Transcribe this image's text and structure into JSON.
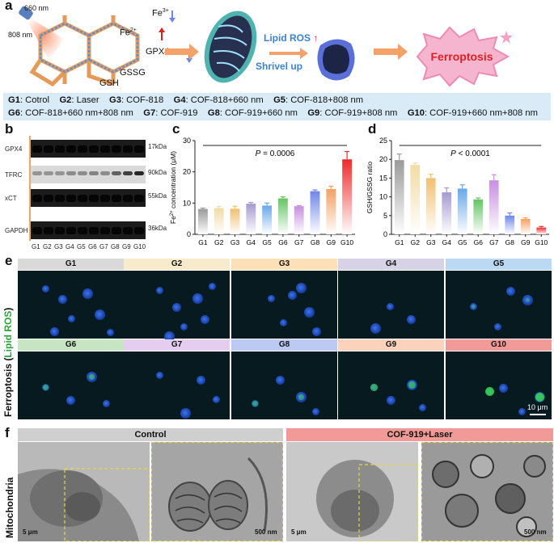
{
  "panels": {
    "a": "a",
    "b": "b",
    "c": "c",
    "d": "d",
    "e": "e",
    "f": "f"
  },
  "schematic": {
    "nm660": "660 nm",
    "nm808": "808 nm",
    "fe3": "Fe",
    "fe3sup": "3+",
    "fe2": "Fe",
    "fe2sup": "2+",
    "gpx4": "GPX4",
    "gssg": "GSSG",
    "gsh": "GSH",
    "lipid_ros": "Lipid ROS",
    "shrivel": "Shrivel up",
    "ferroptosis": "Ferroptosis"
  },
  "legend": {
    "row1": [
      {
        "g": "G1",
        "t": ": Cotrol"
      },
      {
        "g": "G2",
        "t": ": Laser"
      },
      {
        "g": "G3",
        "t": ": COF-818"
      },
      {
        "g": "G4",
        "t": ": COF-818+660 nm"
      },
      {
        "g": "G5",
        "t": ": COF-818+808 nm"
      }
    ],
    "row2": [
      {
        "g": "G6",
        "t": ": COF-818+660 nm+808 nm"
      },
      {
        "g": "G7",
        "t": ": COF-919"
      },
      {
        "g": "G8",
        "t": ": COF-919+660 nm"
      },
      {
        "g": "G9",
        "t": ": COF-919+808 nm"
      },
      {
        "g": "G10",
        "t": ": COF-919+660 nm+808 nm"
      }
    ]
  },
  "western": {
    "proteins": [
      "GPX4",
      "TFRC",
      "xCT",
      "GAPDH"
    ],
    "kda": [
      "17kDa",
      "90kDa",
      "55kDa",
      "36kDa"
    ],
    "lanes": [
      "G1",
      "G2",
      "G3",
      "G4",
      "G5",
      "G6",
      "G7",
      "G8",
      "G9",
      "G10"
    ],
    "tfrc_relative": [
      0.3,
      0.3,
      0.3,
      0.35,
      0.35,
      0.4,
      0.35,
      0.6,
      0.8,
      0.95
    ]
  },
  "chart_data": [
    {
      "type": "bar",
      "categories": [
        "G1",
        "G2",
        "G3",
        "G4",
        "G5",
        "G6",
        "G7",
        "G8",
        "G9",
        "G10"
      ],
      "values": [
        8.1,
        8.4,
        8.2,
        9.8,
        9.2,
        11.5,
        9.0,
        13.8,
        14.5,
        24.0
      ],
      "errors": [
        0.3,
        0.5,
        0.8,
        0.4,
        0.8,
        0.5,
        0.2,
        0.4,
        0.9,
        2.5
      ],
      "colors": [
        "#9a9a9a",
        "#f2dca6",
        "#f0c070",
        "#a69bd0",
        "#6aa8e8",
        "#66c466",
        "#c78ee0",
        "#6f86e8",
        "#f5a060",
        "#ee2b2b"
      ],
      "ylabel": "Fe",
      "ylabel_sup": "2+",
      "ylabel_tail": " concentration (μM)",
      "ylim": [
        0,
        30
      ],
      "yticks": [
        "0",
        "10",
        "20",
        "30"
      ],
      "pvalue_label": "P",
      "pvalue": " = 0.0006"
    },
    {
      "type": "bar",
      "categories": [
        "G1",
        "G2",
        "G3",
        "G4",
        "G5",
        "G6",
        "G7",
        "G8",
        "G9",
        "G10"
      ],
      "values": [
        19.8,
        18.5,
        15.0,
        11.2,
        12.2,
        9.3,
        14.4,
        5.0,
        4.1,
        1.8
      ],
      "errors": [
        1.6,
        0.5,
        1.0,
        1.2,
        1.0,
        0.4,
        1.5,
        0.7,
        0.3,
        0.3
      ],
      "colors": [
        "#9a9a9a",
        "#f2dca6",
        "#f0c070",
        "#a69bd0",
        "#6aa8e8",
        "#66c466",
        "#c78ee0",
        "#6f86e8",
        "#f5a060",
        "#ee2b2b"
      ],
      "ylabel": "GSH/GSSG ratio",
      "ylim": [
        0,
        25
      ],
      "yticks": [
        "0",
        "5",
        "10",
        "15",
        "20",
        "25"
      ],
      "pvalue_label": "P",
      "pvalue": " < 0.0001"
    }
  ],
  "microscopy": {
    "side_label_a": "Ferroptosis (",
    "side_label_b": "Lipid ROS",
    "side_label_c": ")",
    "groups": [
      {
        "name": "G1",
        "color": "#d9d9d9"
      },
      {
        "name": "G2",
        "color": "#f7ebcb"
      },
      {
        "name": "G3",
        "color": "#fbe0b8"
      },
      {
        "name": "G4",
        "color": "#d7d2e6"
      },
      {
        "name": "G5",
        "color": "#bcd9f3"
      },
      {
        "name": "G6",
        "color": "#c8e5c3"
      },
      {
        "name": "G7",
        "color": "#e4cdef"
      },
      {
        "name": "G8",
        "color": "#bcc9f2"
      },
      {
        "name": "G9",
        "color": "#fbd3bc"
      },
      {
        "name": "G10",
        "color": "#f19a97"
      }
    ],
    "green_intensity": [
      0,
      0,
      0,
      0,
      0.15,
      0.35,
      0.05,
      0.3,
      0.55,
      0.9
    ],
    "scalebar": "10 μm"
  },
  "em": {
    "side_label": "Mitochondria",
    "control": "Control",
    "treated": "COF-919+Laser",
    "scale_low": "5 μm",
    "scale_high": "500 nm"
  }
}
